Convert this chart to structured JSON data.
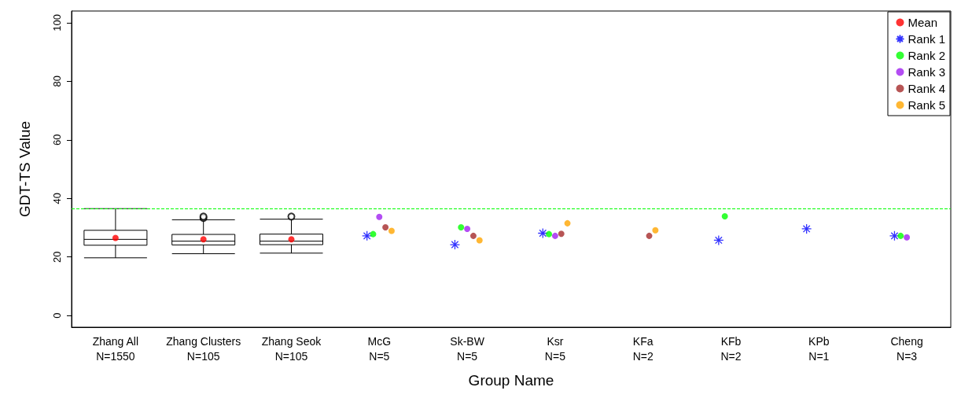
{
  "chart_data": {
    "type": "box",
    "xlabel": "Group Name",
    "ylabel": "GDT-TS Value",
    "categories": [
      "Zhang All\nN=1550",
      "Zhang Clusters\nN=105",
      "Zhang Seok\nN=105",
      "McG\nN=5",
      "Sk-BW\nN=5",
      "Ksr\nN=5",
      "KFa\nN=2",
      "KFb\nN=2",
      "KPb\nN=1",
      "Cheng\nN=3"
    ],
    "boxes": [
      {
        "low": 19.7,
        "q1": 24.0,
        "median": 26.0,
        "q3": 29.1,
        "high": 36.5
      },
      {
        "low": 21.1,
        "q1": 24.1,
        "median": 25.4,
        "q3": 27.7,
        "high": 32.7,
        "outliers": [
          33.3,
          33.8
        ]
      },
      {
        "low": 21.3,
        "q1": 24.2,
        "median": 25.4,
        "q3": 27.8,
        "high": 32.9,
        "outliers": [
          33.8
        ]
      },
      null,
      null,
      null,
      null,
      null,
      null,
      null
    ],
    "series": [
      {
        "name": "Mean",
        "type": "scatter",
        "marker": "circle",
        "color": "#ff0000",
        "values": [
          26.5,
          26.0,
          26.0,
          null,
          null,
          null,
          null,
          null,
          null,
          null
        ]
      },
      {
        "name": "Rank 1",
        "type": "scatter",
        "marker": "cross",
        "color": "#0000ff",
        "values": [
          null,
          null,
          null,
          27.2,
          24.2,
          28.1,
          null,
          25.7,
          29.6,
          27.2
        ]
      },
      {
        "name": "Rank 2",
        "type": "scatter",
        "marker": "circle",
        "color": "#00ff00",
        "values": [
          null,
          null,
          null,
          27.8,
          30.1,
          27.8,
          null,
          33.9,
          null,
          27.2
        ]
      },
      {
        "name": "Rank 3",
        "type": "scatter",
        "marker": "circle",
        "color": "#a020f0",
        "values": [
          null,
          null,
          null,
          33.7,
          29.6,
          27.2,
          null,
          null,
          null,
          26.7
        ]
      },
      {
        "name": "Rank 4",
        "type": "scatter",
        "marker": "circle",
        "color": "#a52a2a",
        "values": [
          null,
          null,
          null,
          30.1,
          27.2,
          27.9,
          27.2,
          null,
          null,
          null
        ]
      },
      {
        "name": "Rank 5",
        "type": "scatter",
        "marker": "circle",
        "color": "#ffa500",
        "values": [
          null,
          null,
          null,
          28.9,
          25.7,
          31.5,
          29.1,
          null,
          null,
          null
        ]
      }
    ],
    "ref_lines": [
      {
        "axis": "y",
        "value": 36.5,
        "color": "#00ff00",
        "line_style": "dashed"
      }
    ],
    "ylim": [
      -4,
      104
    ],
    "yticks": [
      0,
      20,
      40,
      60,
      80,
      100
    ],
    "grid": false,
    "legend": "top right"
  }
}
